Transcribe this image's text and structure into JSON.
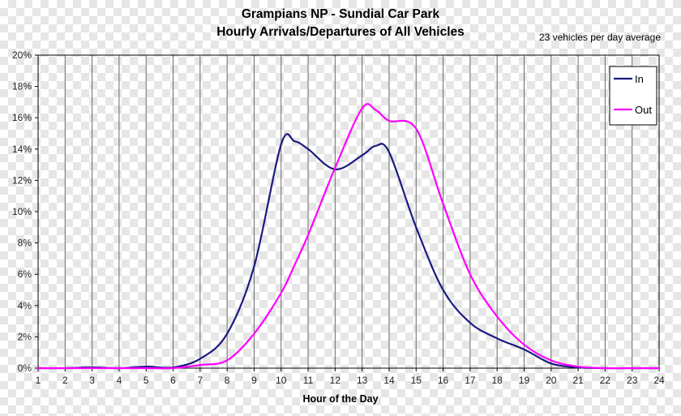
{
  "chart_data": {
    "type": "line",
    "title": "Grampians NP - Sundial Car Park",
    "subtitle": "Hourly Arrivals/Departures of All Vehicles",
    "annotation": "23 vehicles per day average",
    "xlabel": "Hour of the Day",
    "ylabel": "",
    "xlim": [
      1,
      24
    ],
    "ylim": [
      0,
      20
    ],
    "x_ticks": [
      1,
      2,
      3,
      4,
      5,
      6,
      7,
      8,
      9,
      10,
      11,
      12,
      13,
      14,
      15,
      16,
      17,
      18,
      19,
      20,
      21,
      22,
      23,
      24
    ],
    "y_ticks": [
      "0%",
      "2%",
      "4%",
      "6%",
      "8%",
      "10%",
      "12%",
      "14%",
      "16%",
      "18%",
      "20%"
    ],
    "grid": "vertical",
    "legend_position": "top-right",
    "x": [
      1,
      2,
      3,
      4,
      5,
      6,
      7,
      8,
      9,
      10,
      10.5,
      11,
      12,
      13,
      13.5,
      14,
      15,
      16,
      17,
      18,
      19,
      20,
      21,
      22,
      23,
      24
    ],
    "series": [
      {
        "name": "In",
        "color": "#1a1a80",
        "values": [
          0,
          0,
          0.05,
          0,
          0.1,
          0.05,
          0.6,
          2.2,
          6.5,
          14.3,
          14.5,
          14.0,
          12.7,
          13.6,
          14.2,
          13.8,
          9.0,
          5.0,
          2.9,
          1.9,
          1.2,
          0.3,
          0.05,
          0,
          0,
          0
        ]
      },
      {
        "name": "Out",
        "color": "#ff00ff",
        "values": [
          0,
          0,
          0,
          0,
          0,
          0,
          0.2,
          0.5,
          2.2,
          4.8,
          6.6,
          8.5,
          12.8,
          16.6,
          16.5,
          15.8,
          15.3,
          10.5,
          6.0,
          3.3,
          1.5,
          0.5,
          0.1,
          0,
          0,
          0
        ]
      }
    ]
  }
}
